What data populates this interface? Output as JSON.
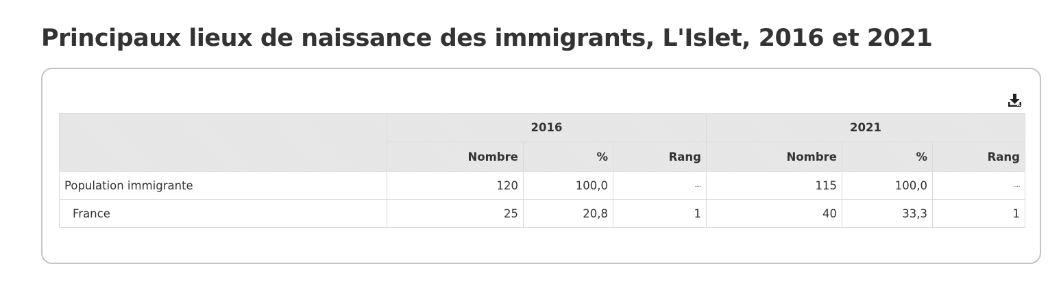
{
  "page": {
    "title": "Principaux lieux de naissance des immigrants, L'Islet, 2016 et 2021"
  },
  "toolbar": {
    "download_icon": "download-icon"
  },
  "table": {
    "years": [
      "2016",
      "2021"
    ],
    "subheaders": [
      "Nombre",
      "%",
      "Rang",
      "Nombre",
      "%",
      "Rang"
    ],
    "rows": [
      {
        "label": "Population immigrante",
        "cells": [
          "120",
          "100,0",
          "....",
          "115",
          "100,0",
          "...."
        ]
      },
      {
        "label": "France",
        "cells": [
          "25",
          "20,8",
          "1",
          "40",
          "33,3",
          "1"
        ]
      }
    ]
  }
}
